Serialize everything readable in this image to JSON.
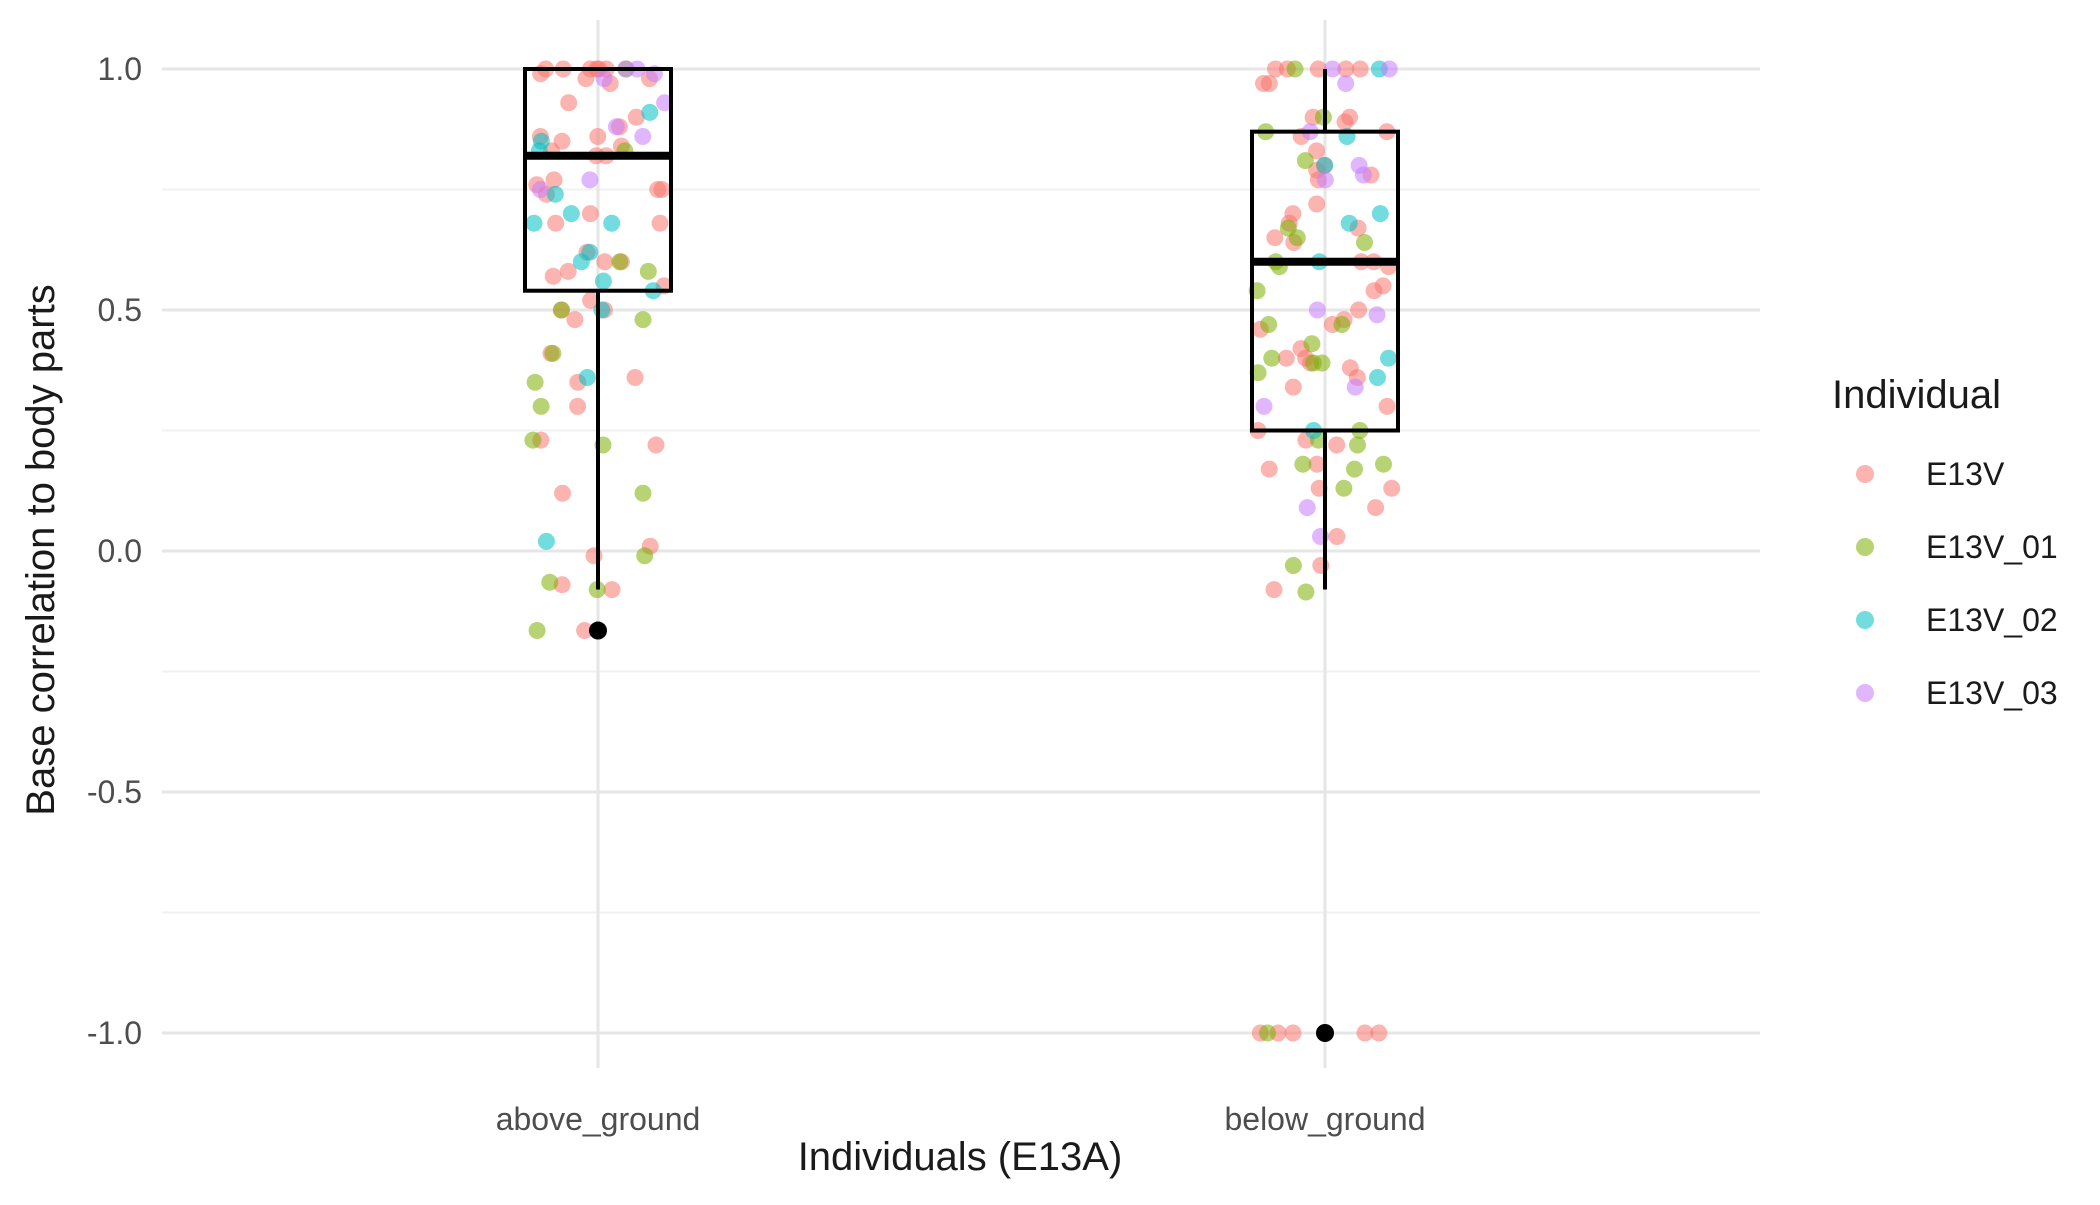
{
  "chart_data": {
    "type": "box+jitter",
    "title": "",
    "xlabel": "Individuals (E13A)",
    "ylabel": "Base correlation to body parts",
    "ylim": [
      -1.1,
      1.0
    ],
    "y_ticks": [
      -1.0,
      -0.5,
      0.0,
      0.5,
      1.0
    ],
    "y_tick_labels": [
      "-1.0",
      "-0.5",
      "0.0",
      "0.5",
      "1.0"
    ],
    "categories": [
      "above_ground",
      "below_ground"
    ],
    "grid": true,
    "legend": {
      "title": "Individual",
      "position": "right",
      "entries": [
        {
          "name": "E13V",
          "color": "#F8766D"
        },
        {
          "name": "E13V_01",
          "color": "#7CAE00"
        },
        {
          "name": "E13V_02",
          "color": "#00BFC4"
        },
        {
          "name": "E13V_03",
          "color": "#C77CFF"
        }
      ]
    },
    "boxes": [
      {
        "category": "above_ground",
        "whisker_low": -0.08,
        "q1": 0.54,
        "median": 0.82,
        "q3": 1.0,
        "whisker_high": 1.0,
        "outliers": [
          -0.165
        ]
      },
      {
        "category": "below_ground",
        "whisker_low": -0.08,
        "q1": 0.25,
        "median": 0.6,
        "q3": 0.87,
        "whisker_high": 1.0,
        "outliers": [
          -1.0
        ]
      }
    ],
    "series": [
      {
        "name": "E13V",
        "points": [
          [
            "above_ground",
            1.0
          ],
          [
            "above_ground",
            1.0
          ],
          [
            "above_ground",
            1.0
          ],
          [
            "above_ground",
            1.0
          ],
          [
            "above_ground",
            1.0
          ],
          [
            "above_ground",
            1.0
          ],
          [
            "above_ground",
            0.99
          ],
          [
            "above_ground",
            0.98
          ],
          [
            "above_ground",
            0.97
          ],
          [
            "above_ground",
            0.98
          ],
          [
            "above_ground",
            0.93
          ],
          [
            "above_ground",
            0.9
          ],
          [
            "above_ground",
            0.88
          ],
          [
            "above_ground",
            0.86
          ],
          [
            "above_ground",
            0.86
          ],
          [
            "above_ground",
            0.85
          ],
          [
            "above_ground",
            0.84
          ],
          [
            "above_ground",
            0.83
          ],
          [
            "above_ground",
            0.82
          ],
          [
            "above_ground",
            0.82
          ],
          [
            "above_ground",
            0.77
          ],
          [
            "above_ground",
            0.76
          ],
          [
            "above_ground",
            0.75
          ],
          [
            "above_ground",
            0.75
          ],
          [
            "above_ground",
            0.74
          ],
          [
            "above_ground",
            0.7
          ],
          [
            "above_ground",
            0.68
          ],
          [
            "above_ground",
            0.68
          ],
          [
            "above_ground",
            0.62
          ],
          [
            "above_ground",
            0.6
          ],
          [
            "above_ground",
            0.6
          ],
          [
            "above_ground",
            0.58
          ],
          [
            "above_ground",
            0.57
          ],
          [
            "above_ground",
            0.55
          ],
          [
            "above_ground",
            0.52
          ],
          [
            "above_ground",
            0.5
          ],
          [
            "above_ground",
            0.5
          ],
          [
            "above_ground",
            0.48
          ],
          [
            "above_ground",
            0.41
          ],
          [
            "above_ground",
            0.36
          ],
          [
            "above_ground",
            0.35
          ],
          [
            "above_ground",
            0.3
          ],
          [
            "above_ground",
            0.23
          ],
          [
            "above_ground",
            0.22
          ],
          [
            "above_ground",
            0.12
          ],
          [
            "above_ground",
            0.01
          ],
          [
            "above_ground",
            -0.01
          ],
          [
            "above_ground",
            -0.07
          ],
          [
            "above_ground",
            -0.08
          ],
          [
            "above_ground",
            -0.165
          ],
          [
            "below_ground",
            1.0
          ],
          [
            "below_ground",
            1.0
          ],
          [
            "below_ground",
            1.0
          ],
          [
            "below_ground",
            1.0
          ],
          [
            "below_ground",
            1.0
          ],
          [
            "below_ground",
            0.97
          ],
          [
            "below_ground",
            0.97
          ],
          [
            "below_ground",
            0.9
          ],
          [
            "below_ground",
            0.9
          ],
          [
            "below_ground",
            0.89
          ],
          [
            "below_ground",
            0.87
          ],
          [
            "below_ground",
            0.86
          ],
          [
            "below_ground",
            0.83
          ],
          [
            "below_ground",
            0.8
          ],
          [
            "below_ground",
            0.79
          ],
          [
            "below_ground",
            0.78
          ],
          [
            "below_ground",
            0.77
          ],
          [
            "below_ground",
            0.72
          ],
          [
            "below_ground",
            0.7
          ],
          [
            "below_ground",
            0.68
          ],
          [
            "below_ground",
            0.67
          ],
          [
            "below_ground",
            0.65
          ],
          [
            "below_ground",
            0.64
          ],
          [
            "below_ground",
            0.6
          ],
          [
            "below_ground",
            0.6
          ],
          [
            "below_ground",
            0.59
          ],
          [
            "below_ground",
            0.55
          ],
          [
            "below_ground",
            0.54
          ],
          [
            "below_ground",
            0.5
          ],
          [
            "below_ground",
            0.48
          ],
          [
            "below_ground",
            0.47
          ],
          [
            "below_ground",
            0.46
          ],
          [
            "below_ground",
            0.42
          ],
          [
            "below_ground",
            0.4
          ],
          [
            "below_ground",
            0.4
          ],
          [
            "below_ground",
            0.39
          ],
          [
            "below_ground",
            0.38
          ],
          [
            "below_ground",
            0.36
          ],
          [
            "below_ground",
            0.34
          ],
          [
            "below_ground",
            0.3
          ],
          [
            "below_ground",
            0.25
          ],
          [
            "below_ground",
            0.23
          ],
          [
            "below_ground",
            0.22
          ],
          [
            "below_ground",
            0.18
          ],
          [
            "below_ground",
            0.17
          ],
          [
            "below_ground",
            0.13
          ],
          [
            "below_ground",
            0.13
          ],
          [
            "below_ground",
            0.09
          ],
          [
            "below_ground",
            0.03
          ],
          [
            "below_ground",
            -0.03
          ],
          [
            "below_ground",
            -0.08
          ],
          [
            "below_ground",
            -1.0
          ],
          [
            "below_ground",
            -1.0
          ],
          [
            "below_ground",
            -1.0
          ],
          [
            "below_ground",
            -1.0
          ],
          [
            "below_ground",
            -1.0
          ]
        ]
      },
      {
        "name": "E13V_01",
        "points": [
          [
            "above_ground",
            1.0
          ],
          [
            "above_ground",
            0.83
          ],
          [
            "above_ground",
            0.6
          ],
          [
            "above_ground",
            0.58
          ],
          [
            "above_ground",
            0.5
          ],
          [
            "above_ground",
            0.48
          ],
          [
            "above_ground",
            0.41
          ],
          [
            "above_ground",
            0.35
          ],
          [
            "above_ground",
            0.3
          ],
          [
            "above_ground",
            0.23
          ],
          [
            "above_ground",
            0.22
          ],
          [
            "above_ground",
            0.12
          ],
          [
            "above_ground",
            -0.01
          ],
          [
            "above_ground",
            -0.065
          ],
          [
            "above_ground",
            -0.08
          ],
          [
            "above_ground",
            -0.165
          ],
          [
            "below_ground",
            1.0
          ],
          [
            "below_ground",
            0.9
          ],
          [
            "below_ground",
            0.87
          ],
          [
            "below_ground",
            0.81
          ],
          [
            "below_ground",
            0.67
          ],
          [
            "below_ground",
            0.65
          ],
          [
            "below_ground",
            0.64
          ],
          [
            "below_ground",
            0.6
          ],
          [
            "below_ground",
            0.59
          ],
          [
            "below_ground",
            0.54
          ],
          [
            "below_ground",
            0.47
          ],
          [
            "below_ground",
            0.47
          ],
          [
            "below_ground",
            0.43
          ],
          [
            "below_ground",
            0.4
          ],
          [
            "below_ground",
            0.39
          ],
          [
            "below_ground",
            0.39
          ],
          [
            "below_ground",
            0.37
          ],
          [
            "below_ground",
            0.25
          ],
          [
            "below_ground",
            0.23
          ],
          [
            "below_ground",
            0.22
          ],
          [
            "below_ground",
            0.18
          ],
          [
            "below_ground",
            0.18
          ],
          [
            "below_ground",
            0.17
          ],
          [
            "below_ground",
            0.13
          ],
          [
            "below_ground",
            -0.03
          ],
          [
            "below_ground",
            -0.085
          ],
          [
            "below_ground",
            -1.0
          ]
        ]
      },
      {
        "name": "E13V_02",
        "points": [
          [
            "above_ground",
            0.91
          ],
          [
            "above_ground",
            0.85
          ],
          [
            "above_ground",
            0.83
          ],
          [
            "above_ground",
            0.74
          ],
          [
            "above_ground",
            0.7
          ],
          [
            "above_ground",
            0.68
          ],
          [
            "above_ground",
            0.68
          ],
          [
            "above_ground",
            0.62
          ],
          [
            "above_ground",
            0.6
          ],
          [
            "above_ground",
            0.56
          ],
          [
            "above_ground",
            0.54
          ],
          [
            "above_ground",
            0.5
          ],
          [
            "above_ground",
            0.36
          ],
          [
            "above_ground",
            0.02
          ],
          [
            "below_ground",
            1.0
          ],
          [
            "below_ground",
            0.86
          ],
          [
            "below_ground",
            0.8
          ],
          [
            "below_ground",
            0.7
          ],
          [
            "below_ground",
            0.68
          ],
          [
            "below_ground",
            0.6
          ],
          [
            "below_ground",
            0.4
          ],
          [
            "below_ground",
            0.36
          ],
          [
            "below_ground",
            0.25
          ],
          [
            "below_ground",
            -1.0
          ]
        ]
      },
      {
        "name": "E13V_03",
        "points": [
          [
            "above_ground",
            1.0
          ],
          [
            "above_ground",
            1.0
          ],
          [
            "above_ground",
            0.99
          ],
          [
            "above_ground",
            0.98
          ],
          [
            "above_ground",
            0.93
          ],
          [
            "above_ground",
            0.88
          ],
          [
            "above_ground",
            0.86
          ],
          [
            "above_ground",
            0.77
          ],
          [
            "above_ground",
            0.75
          ],
          [
            "below_ground",
            1.0
          ],
          [
            "below_ground",
            1.0
          ],
          [
            "below_ground",
            0.97
          ],
          [
            "below_ground",
            0.87
          ],
          [
            "below_ground",
            0.8
          ],
          [
            "below_ground",
            0.78
          ],
          [
            "below_ground",
            0.77
          ],
          [
            "below_ground",
            0.5
          ],
          [
            "below_ground",
            0.49
          ],
          [
            "below_ground",
            0.34
          ],
          [
            "below_ground",
            0.3
          ],
          [
            "below_ground",
            0.09
          ],
          [
            "below_ground",
            0.03
          ]
        ]
      }
    ]
  }
}
